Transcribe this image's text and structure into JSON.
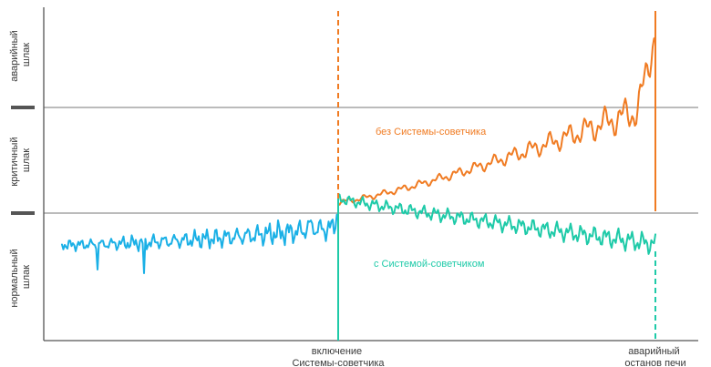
{
  "chart_data": {
    "type": "line",
    "y_zones": [
      {
        "lines": [
          "аварийный",
          "шлак"
        ]
      },
      {
        "lines": [
          "критичный",
          "шлак"
        ]
      },
      {
        "lines": [
          "нормальный",
          "шлак"
        ]
      }
    ],
    "events": [
      {
        "lines": [
          "включение",
          "Системы-советчика"
        ]
      },
      {
        "lines": [
          "аварийный",
          "останов печи"
        ]
      }
    ],
    "series": [
      {
        "name": "без Системы-советчика",
        "color": "#f07b22"
      },
      {
        "name": "с Системой-советчиком",
        "color": "#1ecaa8"
      }
    ],
    "baseline_color": "#1ab0e6",
    "axis_color": "#555555",
    "grid": "two horizontal zone boundaries"
  }
}
